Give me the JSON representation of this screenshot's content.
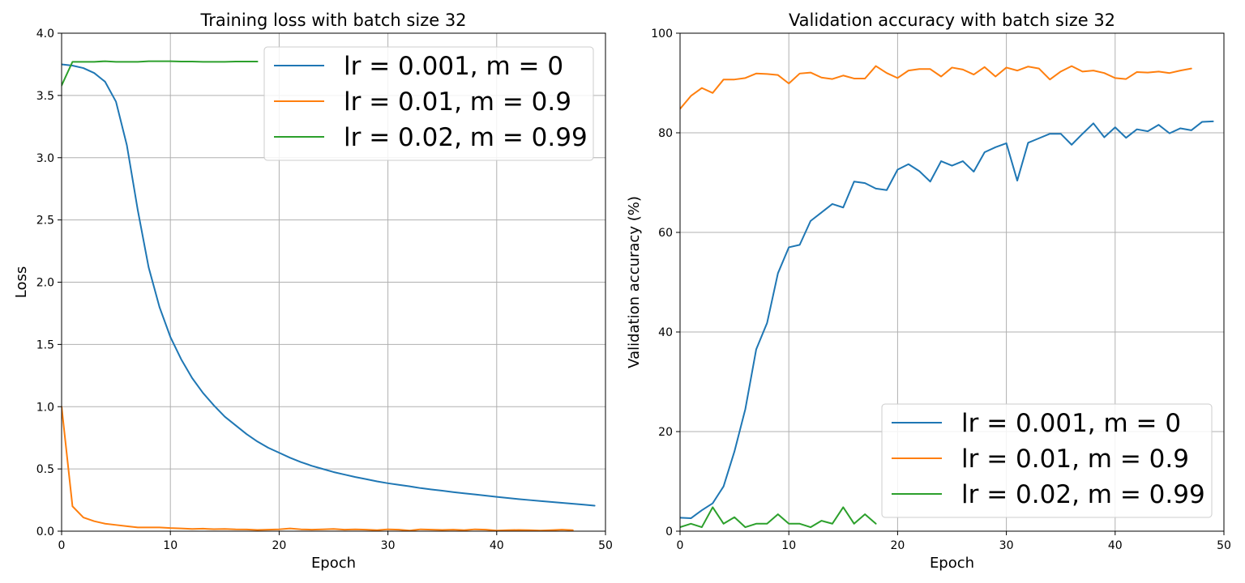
{
  "chart_data": [
    {
      "type": "line",
      "title": "Training loss with batch size 32",
      "xlabel": "Epoch",
      "ylabel": "Loss",
      "xlim": [
        0,
        50
      ],
      "ylim": [
        0,
        4.0
      ],
      "xticks": [
        "0",
        "10",
        "20",
        "30",
        "40",
        "50"
      ],
      "yticks": [
        "0.0",
        "0.5",
        "1.0",
        "1.5",
        "2.0",
        "2.5",
        "3.0",
        "3.5",
        "4.0"
      ],
      "grid": true,
      "legend_position": "top-right",
      "series": [
        {
          "name": "lr = 0.001, m = 0",
          "color": "#1f77b4",
          "x": [
            0,
            1,
            2,
            3,
            4,
            5,
            6,
            7,
            8,
            9,
            10,
            11,
            12,
            13,
            14,
            15,
            16,
            17,
            18,
            19,
            20,
            21,
            22,
            23,
            24,
            25,
            26,
            27,
            28,
            29,
            30,
            31,
            32,
            33,
            34,
            35,
            36,
            37,
            38,
            39,
            40,
            41,
            42,
            43,
            44,
            45,
            46,
            47,
            48,
            49
          ],
          "values": [
            3.75,
            3.74,
            3.72,
            3.68,
            3.61,
            3.45,
            3.1,
            2.58,
            2.12,
            1.8,
            1.56,
            1.38,
            1.23,
            1.11,
            1.01,
            0.92,
            0.85,
            0.78,
            0.72,
            0.67,
            0.63,
            0.59,
            0.555,
            0.525,
            0.5,
            0.475,
            0.455,
            0.435,
            0.418,
            0.4,
            0.385,
            0.372,
            0.36,
            0.346,
            0.335,
            0.325,
            0.314,
            0.304,
            0.295,
            0.285,
            0.276,
            0.267,
            0.258,
            0.25,
            0.242,
            0.235,
            0.228,
            0.22,
            0.213,
            0.205
          ]
        },
        {
          "name": "lr = 0.01, m = 0.9",
          "color": "#ff7f0e",
          "x": [
            0,
            1,
            2,
            3,
            4,
            5,
            6,
            7,
            8,
            9,
            10,
            11,
            12,
            13,
            14,
            15,
            16,
            17,
            18,
            19,
            20,
            21,
            22,
            23,
            24,
            25,
            26,
            27,
            28,
            29,
            30,
            31,
            32,
            33,
            34,
            35,
            36,
            37,
            38,
            39,
            40,
            41,
            42,
            43,
            44,
            45,
            46,
            47
          ],
          "values": [
            1.0,
            0.2,
            0.11,
            0.08,
            0.06,
            0.05,
            0.04,
            0.03,
            0.03,
            0.03,
            0.025,
            0.022,
            0.018,
            0.02,
            0.016,
            0.018,
            0.015,
            0.014,
            0.01,
            0.012,
            0.015,
            0.022,
            0.015,
            0.012,
            0.015,
            0.018,
            0.012,
            0.015,
            0.012,
            0.008,
            0.015,
            0.012,
            0.005,
            0.015,
            0.012,
            0.01,
            0.012,
            0.008,
            0.015,
            0.012,
            0.005,
            0.008,
            0.01,
            0.008,
            0.005,
            0.008,
            0.012,
            0.008
          ]
        },
        {
          "name": "lr = 0.02, m = 0.99",
          "color": "#2ca02c",
          "x": [
            0,
            1,
            2,
            3,
            4,
            5,
            6,
            7,
            8,
            9,
            10,
            11,
            12,
            13,
            14,
            15,
            16,
            17,
            18
          ],
          "values": [
            3.58,
            3.77,
            3.77,
            3.77,
            3.775,
            3.77,
            3.77,
            3.77,
            3.775,
            3.775,
            3.775,
            3.772,
            3.772,
            3.77,
            3.77,
            3.77,
            3.772,
            3.772,
            3.772
          ]
        }
      ]
    },
    {
      "type": "line",
      "title": "Validation accuracy with batch size 32",
      "xlabel": "Epoch",
      "ylabel": "Validation accuracy (%)",
      "xlim": [
        0,
        50
      ],
      "ylim": [
        0,
        100
      ],
      "xticks": [
        "0",
        "10",
        "20",
        "30",
        "40",
        "50"
      ],
      "yticks": [
        "0",
        "20",
        "40",
        "60",
        "80",
        "100"
      ],
      "grid": true,
      "legend_position": "bottom-right",
      "series": [
        {
          "name": "lr = 0.001, m = 0",
          "color": "#1f77b4",
          "x": [
            0,
            1,
            2,
            3,
            4,
            5,
            6,
            7,
            8,
            9,
            10,
            11,
            12,
            13,
            14,
            15,
            16,
            17,
            18,
            19,
            20,
            21,
            22,
            23,
            24,
            25,
            26,
            27,
            28,
            29,
            30,
            31,
            32,
            33,
            34,
            35,
            36,
            37,
            38,
            39,
            40,
            41,
            42,
            43,
            44,
            45,
            46,
            47,
            48,
            49
          ],
          "values": [
            2.7,
            2.6,
            4.2,
            5.6,
            9.0,
            16.0,
            24.5,
            36.5,
            41.8,
            51.8,
            57.0,
            57.5,
            62.3,
            64.0,
            65.7,
            65.0,
            70.2,
            69.9,
            68.8,
            68.5,
            72.6,
            73.7,
            72.3,
            70.2,
            74.3,
            73.4,
            74.3,
            72.2,
            76.1,
            77.1,
            77.9,
            70.4,
            78.0,
            78.9,
            79.8,
            79.8,
            77.6,
            79.8,
            81.9,
            79.1,
            81.1,
            79.0,
            80.7,
            80.3,
            81.6,
            79.9,
            80.9,
            80.5,
            82.2,
            82.3
          ]
        },
        {
          "name": "lr = 0.01, m = 0.9",
          "color": "#ff7f0e",
          "x": [
            0,
            1,
            2,
            3,
            4,
            5,
            6,
            7,
            8,
            9,
            10,
            11,
            12,
            13,
            14,
            15,
            16,
            17,
            18,
            19,
            20,
            21,
            22,
            23,
            24,
            25,
            26,
            27,
            28,
            29,
            30,
            31,
            32,
            33,
            34,
            35,
            36,
            37,
            38,
            39,
            40,
            41,
            42,
            43,
            44,
            45,
            46,
            47
          ],
          "values": [
            84.8,
            87.4,
            89.0,
            88.0,
            90.7,
            90.7,
            91.0,
            91.9,
            91.8,
            91.6,
            89.9,
            91.9,
            92.1,
            91.1,
            90.8,
            91.5,
            90.9,
            90.9,
            93.4,
            92.0,
            91.0,
            92.5,
            92.8,
            92.8,
            91.3,
            93.1,
            92.7,
            91.7,
            93.2,
            91.3,
            93.1,
            92.5,
            93.3,
            92.9,
            90.7,
            92.3,
            93.4,
            92.3,
            92.5,
            92.0,
            91.0,
            90.8,
            92.2,
            92.1,
            92.3,
            92.0,
            92.5,
            92.9
          ]
        },
        {
          "name": "lr = 0.02, m = 0.99",
          "color": "#2ca02c",
          "x": [
            0,
            1,
            2,
            3,
            4,
            5,
            6,
            7,
            8,
            9,
            10,
            11,
            12,
            13,
            14,
            15,
            16,
            17,
            18
          ],
          "values": [
            0.8,
            1.5,
            0.8,
            4.8,
            1.5,
            2.8,
            0.8,
            1.5,
            1.5,
            3.4,
            1.5,
            1.5,
            0.8,
            2.1,
            1.5,
            4.8,
            1.5,
            3.4,
            1.5
          ]
        }
      ]
    }
  ]
}
